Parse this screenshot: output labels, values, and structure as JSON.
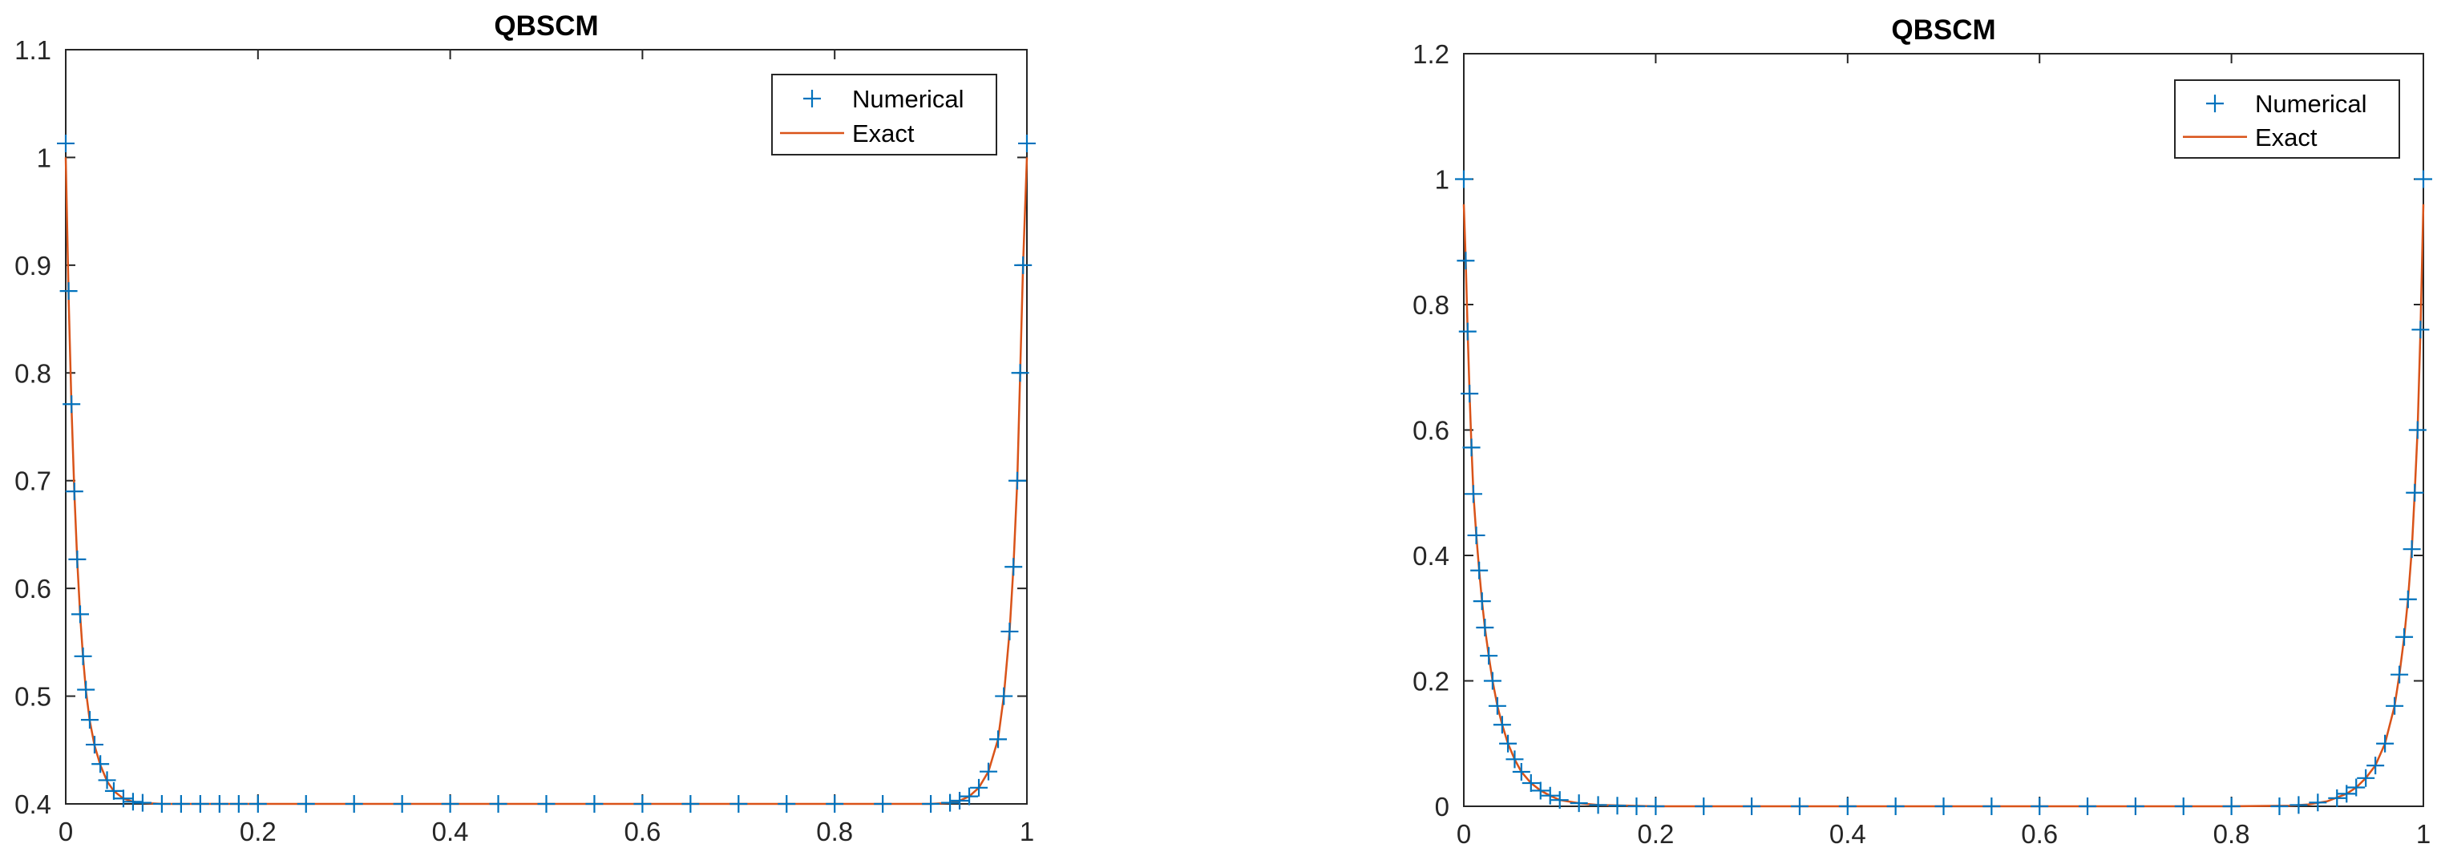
{
  "figure": {
    "colors": {
      "numerical": "#0072BD",
      "exact": "#D95319",
      "axes": "#262626",
      "background": "#ffffff"
    }
  },
  "chart_data": [
    {
      "type": "line",
      "title": "QBSCM",
      "xlabel": "",
      "ylabel": "",
      "xlim": [
        0,
        1
      ],
      "ylim": [
        0.4,
        1.1
      ],
      "xticks": [
        "0",
        "0.2",
        "0.4",
        "0.6",
        "0.8",
        "1"
      ],
      "yticks": [
        "0.4",
        "0.5",
        "0.6",
        "0.7",
        "0.8",
        "0.9",
        "1",
        "1.1"
      ],
      "legend": {
        "position": "top-right",
        "entries": [
          "Numerical",
          "Exact"
        ]
      },
      "grid": false,
      "series": [
        {
          "name": "Numerical",
          "marker": "+",
          "x": [
            0,
            0.003,
            0.006,
            0.009,
            0.012,
            0.015,
            0.018,
            0.021,
            0.025,
            0.03,
            0.036,
            0.043,
            0.05,
            0.06,
            0.07,
            0.08,
            0.1,
            0.12,
            0.14,
            0.16,
            0.18,
            0.2,
            0.25,
            0.3,
            0.35,
            0.4,
            0.45,
            0.5,
            0.55,
            0.6,
            0.65,
            0.7,
            0.75,
            0.8,
            0.85,
            0.9,
            0.92,
            0.93,
            0.94,
            0.95,
            0.96,
            0.97,
            0.976,
            0.982,
            0.986,
            0.99,
            0.993,
            0.996,
            1.0
          ],
          "y": [
            1.013,
            0.876,
            0.771,
            0.69,
            0.627,
            0.576,
            0.537,
            0.506,
            0.478,
            0.455,
            0.437,
            0.422,
            0.412,
            0.405,
            0.402,
            0.401,
            0.4,
            0.4,
            0.4,
            0.4,
            0.4,
            0.4,
            0.4,
            0.4,
            0.4,
            0.4,
            0.4,
            0.4,
            0.4,
            0.4,
            0.4,
            0.4,
            0.4,
            0.4,
            0.4,
            0.4,
            0.401,
            0.403,
            0.407,
            0.415,
            0.43,
            0.46,
            0.5,
            0.56,
            0.62,
            0.7,
            0.8,
            0.9,
            1.013
          ]
        },
        {
          "name": "Exact",
          "x": [
            0,
            0.003,
            0.006,
            0.009,
            0.012,
            0.015,
            0.018,
            0.021,
            0.025,
            0.03,
            0.036,
            0.043,
            0.05,
            0.06,
            0.07,
            0.08,
            0.1,
            0.2,
            0.4,
            0.6,
            0.8,
            0.9,
            0.92,
            0.93,
            0.94,
            0.95,
            0.96,
            0.97,
            0.976,
            0.982,
            0.986,
            0.99,
            0.993,
            0.996,
            1.0
          ],
          "y": [
            1.0,
            0.87,
            0.768,
            0.688,
            0.625,
            0.575,
            0.536,
            0.505,
            0.477,
            0.454,
            0.436,
            0.421,
            0.412,
            0.405,
            0.402,
            0.401,
            0.4,
            0.4,
            0.4,
            0.4,
            0.4,
            0.4,
            0.401,
            0.403,
            0.407,
            0.415,
            0.43,
            0.46,
            0.5,
            0.56,
            0.62,
            0.7,
            0.8,
            0.9,
            1.0
          ]
        }
      ]
    },
    {
      "type": "line",
      "title": "QBSCM",
      "xlabel": "",
      "ylabel": "",
      "xlim": [
        0,
        1
      ],
      "ylim": [
        0,
        1.2
      ],
      "xticks": [
        "0",
        "0.2",
        "0.4",
        "0.6",
        "0.8",
        "1"
      ],
      "yticks": [
        "0",
        "0.2",
        "0.4",
        "0.6",
        "0.8",
        "1",
        "1.2"
      ],
      "legend": {
        "position": "top-right",
        "entries": [
          "Numerical",
          "Exact"
        ]
      },
      "grid": false,
      "series": [
        {
          "name": "Numerical",
          "marker": "+",
          "x": [
            0,
            0.002,
            0.004,
            0.006,
            0.008,
            0.01,
            0.013,
            0.016,
            0.019,
            0.022,
            0.026,
            0.03,
            0.035,
            0.04,
            0.046,
            0.053,
            0.06,
            0.07,
            0.08,
            0.09,
            0.1,
            0.12,
            0.14,
            0.16,
            0.18,
            0.2,
            0.25,
            0.3,
            0.35,
            0.4,
            0.45,
            0.5,
            0.55,
            0.6,
            0.65,
            0.7,
            0.75,
            0.8,
            0.85,
            0.87,
            0.89,
            0.91,
            0.92,
            0.93,
            0.94,
            0.95,
            0.96,
            0.97,
            0.975,
            0.98,
            0.984,
            0.988,
            0.991,
            0.994,
            0.997,
            1.0
          ],
          "y": [
            1.0,
            0.87,
            0.757,
            0.658,
            0.572,
            0.498,
            0.432,
            0.376,
            0.327,
            0.285,
            0.24,
            0.2,
            0.16,
            0.13,
            0.1,
            0.075,
            0.055,
            0.037,
            0.025,
            0.017,
            0.01,
            0.005,
            0.002,
            0.001,
            0.0,
            0.0,
            0.0,
            0.0,
            0.0,
            0.0,
            0.0,
            0.0,
            0.0,
            0.0,
            0.0,
            0.0,
            0.0,
            0.0,
            0.0,
            0.002,
            0.006,
            0.013,
            0.02,
            0.03,
            0.045,
            0.065,
            0.1,
            0.16,
            0.21,
            0.27,
            0.33,
            0.41,
            0.5,
            0.6,
            0.76,
            1.0
          ]
        },
        {
          "name": "Exact",
          "x": [
            0,
            0.002,
            0.004,
            0.006,
            0.008,
            0.01,
            0.013,
            0.016,
            0.019,
            0.022,
            0.026,
            0.03,
            0.035,
            0.04,
            0.046,
            0.053,
            0.06,
            0.07,
            0.08,
            0.09,
            0.1,
            0.12,
            0.14,
            0.2,
            0.4,
            0.6,
            0.8,
            0.86,
            0.88,
            0.9,
            0.92,
            0.93,
            0.94,
            0.95,
            0.96,
            0.97,
            0.975,
            0.98,
            0.984,
            0.988,
            0.991,
            0.994,
            0.997,
            1.0
          ],
          "y": [
            0.96,
            0.87,
            0.757,
            0.658,
            0.572,
            0.498,
            0.432,
            0.376,
            0.327,
            0.285,
            0.24,
            0.2,
            0.16,
            0.13,
            0.1,
            0.075,
            0.055,
            0.037,
            0.025,
            0.017,
            0.01,
            0.005,
            0.002,
            0.0,
            0.0,
            0.0,
            0.0,
            0.001,
            0.003,
            0.008,
            0.02,
            0.03,
            0.045,
            0.065,
            0.1,
            0.16,
            0.21,
            0.27,
            0.33,
            0.41,
            0.5,
            0.6,
            0.76,
            0.96
          ]
        }
      ]
    }
  ]
}
